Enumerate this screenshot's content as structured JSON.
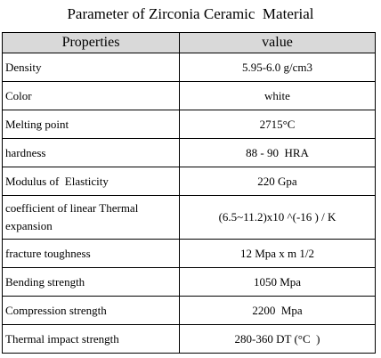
{
  "header": {
    "title": "Parameter of Zirconia Ceramic  Material"
  },
  "table": {
    "columns": [
      "Properties",
      "value"
    ],
    "rows": [
      [
        "Density",
        "5.95-6.0 g/cm3"
      ],
      [
        "Color",
        "white"
      ],
      [
        "Melting point",
        "2715°C"
      ],
      [
        "hardness",
        "88 - 90  HRA"
      ],
      [
        "Modulus of  Elasticity",
        "220 Gpa"
      ],
      [
        "coefficient of linear Thermal expansion",
        "(6.5~11.2)x10 ^(-16 ) / K"
      ],
      [
        "fracture toughness",
        "12 Mpa x m 1/2"
      ],
      [
        "Bending strength",
        "1050 Mpa"
      ],
      [
        "Compression strength",
        "2200  Mpa"
      ],
      [
        "Thermal impact strength",
        "280-360 DT (°C  )"
      ]
    ]
  }
}
